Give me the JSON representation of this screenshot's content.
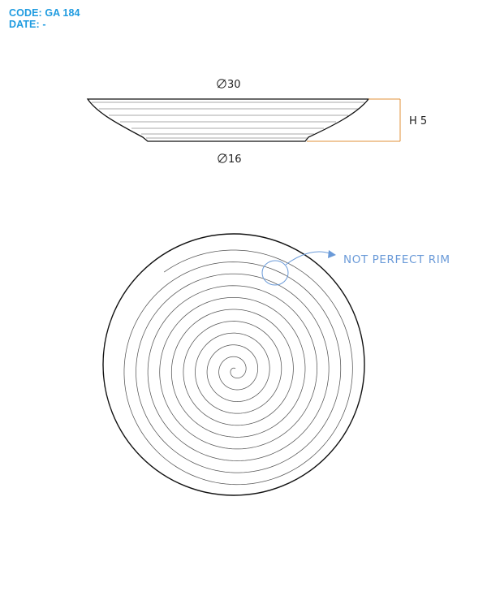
{
  "header": {
    "code_label": "CODE: GA 184",
    "date_label": "DATE: -"
  },
  "side_view": {
    "top_diameter_label": "30",
    "bottom_diameter_label": "16",
    "height_label": "H 5",
    "diameter_symbol": "diameter-symbol"
  },
  "top_view": {
    "annotation_label": "NOT PERFECT RIM",
    "annotation_color": "#6a9ad8",
    "dimension_color": "#e0903a"
  }
}
